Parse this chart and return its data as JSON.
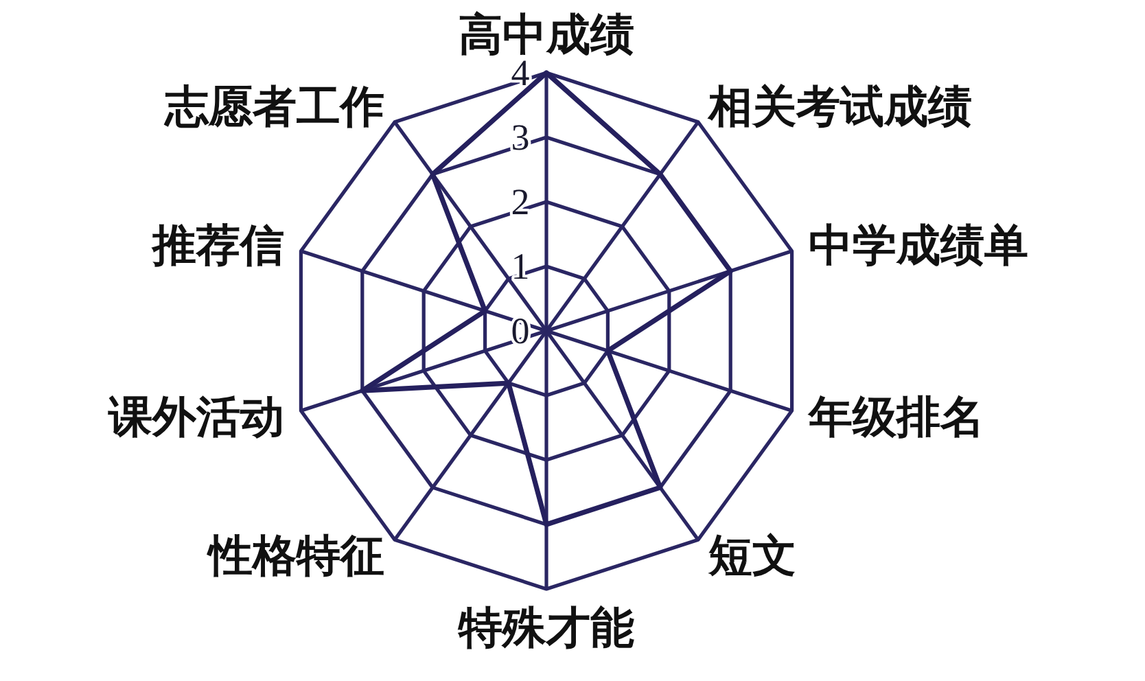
{
  "chart_data": {
    "type": "radar",
    "categories": [
      "高中成绩",
      "相关考试成绩",
      "中学成绩单",
      "年级排名",
      "短文",
      "特殊才能",
      "性格特征",
      "课外活动",
      "推荐信",
      "志愿者工作"
    ],
    "series": [
      {
        "color": "#25205e",
        "values": [
          4,
          3,
          3,
          1,
          3,
          3,
          1,
          3,
          1,
          3
        ]
      }
    ],
    "ylim": [
      0,
      4
    ],
    "yticks": [
      0,
      1,
      2,
      3,
      4
    ],
    "grid": true
  }
}
